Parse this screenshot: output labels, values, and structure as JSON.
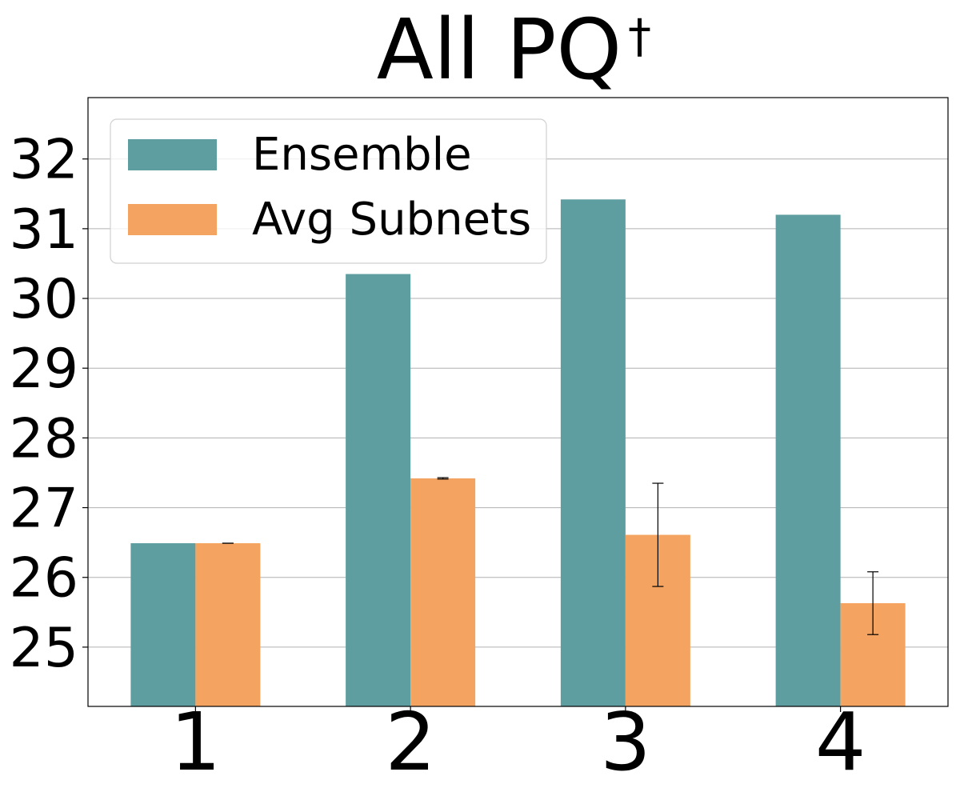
{
  "chart_data": {
    "type": "bar",
    "title": "All PQ",
    "title_superscript": "†",
    "xlabel": "",
    "ylabel": "",
    "categories": [
      "1",
      "2",
      "3",
      "4"
    ],
    "ylim": [
      24.15,
      32.88
    ],
    "yticks": [
      25,
      26,
      27,
      28,
      29,
      30,
      31,
      32
    ],
    "grid": "horizontal",
    "legend_position": "top-left",
    "series": [
      {
        "name": "Ensemble",
        "color": "#5f9ea0",
        "values": [
          26.49,
          30.35,
          31.42,
          31.2
        ]
      },
      {
        "name": "Avg Subnets",
        "color": "#f4a460",
        "values": [
          26.49,
          27.42,
          26.61,
          25.63
        ],
        "error": [
          0.0,
          0.01,
          0.74,
          0.45
        ]
      }
    ]
  }
}
